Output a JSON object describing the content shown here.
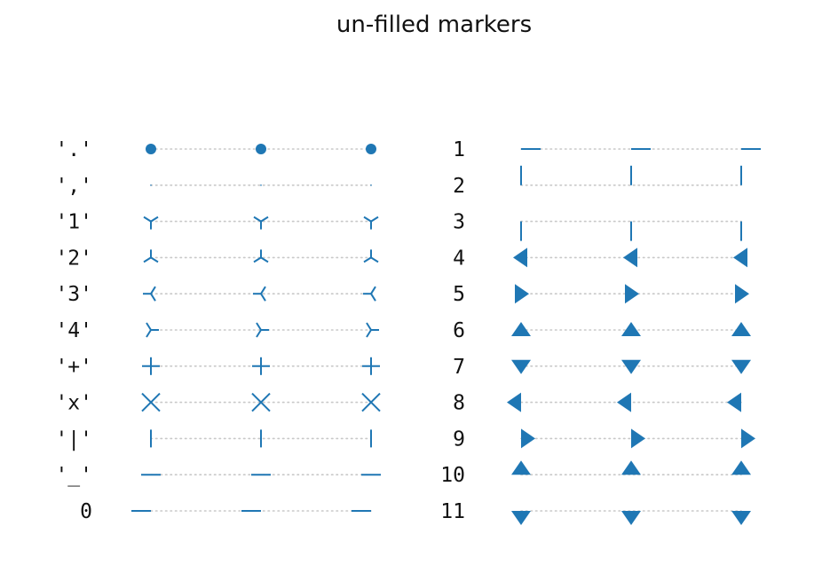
{
  "chart_data": {
    "type": "scatter",
    "title": "un-filled markers",
    "marker_color": "#1f77b4",
    "guide_color": "#c8c8c8",
    "x_positions": [
      0,
      1,
      2
    ],
    "grid": false,
    "axes_visible": false,
    "panels": [
      {
        "label_style": "quoted-string",
        "rows": [
          {
            "label": "'.'",
            "marker": "point"
          },
          {
            "label": "','",
            "marker": "pixel"
          },
          {
            "label": "'1'",
            "marker": "tri_down"
          },
          {
            "label": "'2'",
            "marker": "tri_up"
          },
          {
            "label": "'3'",
            "marker": "tri_left"
          },
          {
            "label": "'4'",
            "marker": "tri_right"
          },
          {
            "label": "'+'",
            "marker": "plus"
          },
          {
            "label": "'x'",
            "marker": "x"
          },
          {
            "label": "'|'",
            "marker": "vline"
          },
          {
            "label": "'_'",
            "marker": "hline"
          },
          {
            "label": "0",
            "marker": "tickleft"
          }
        ]
      },
      {
        "label_style": "integer",
        "rows": [
          {
            "label": "1",
            "marker": "tickright"
          },
          {
            "label": "2",
            "marker": "tickup"
          },
          {
            "label": "3",
            "marker": "tickdown"
          },
          {
            "label": "4",
            "marker": "caretleft"
          },
          {
            "label": "5",
            "marker": "caretright"
          },
          {
            "label": "6",
            "marker": "caretup"
          },
          {
            "label": "7",
            "marker": "caretdown"
          },
          {
            "label": "8",
            "marker": "caretleftbase"
          },
          {
            "label": "9",
            "marker": "caretrightbase"
          },
          {
            "label": "10",
            "marker": "caretupbase"
          },
          {
            "label": "11",
            "marker": "caretdownbase"
          }
        ]
      }
    ]
  }
}
